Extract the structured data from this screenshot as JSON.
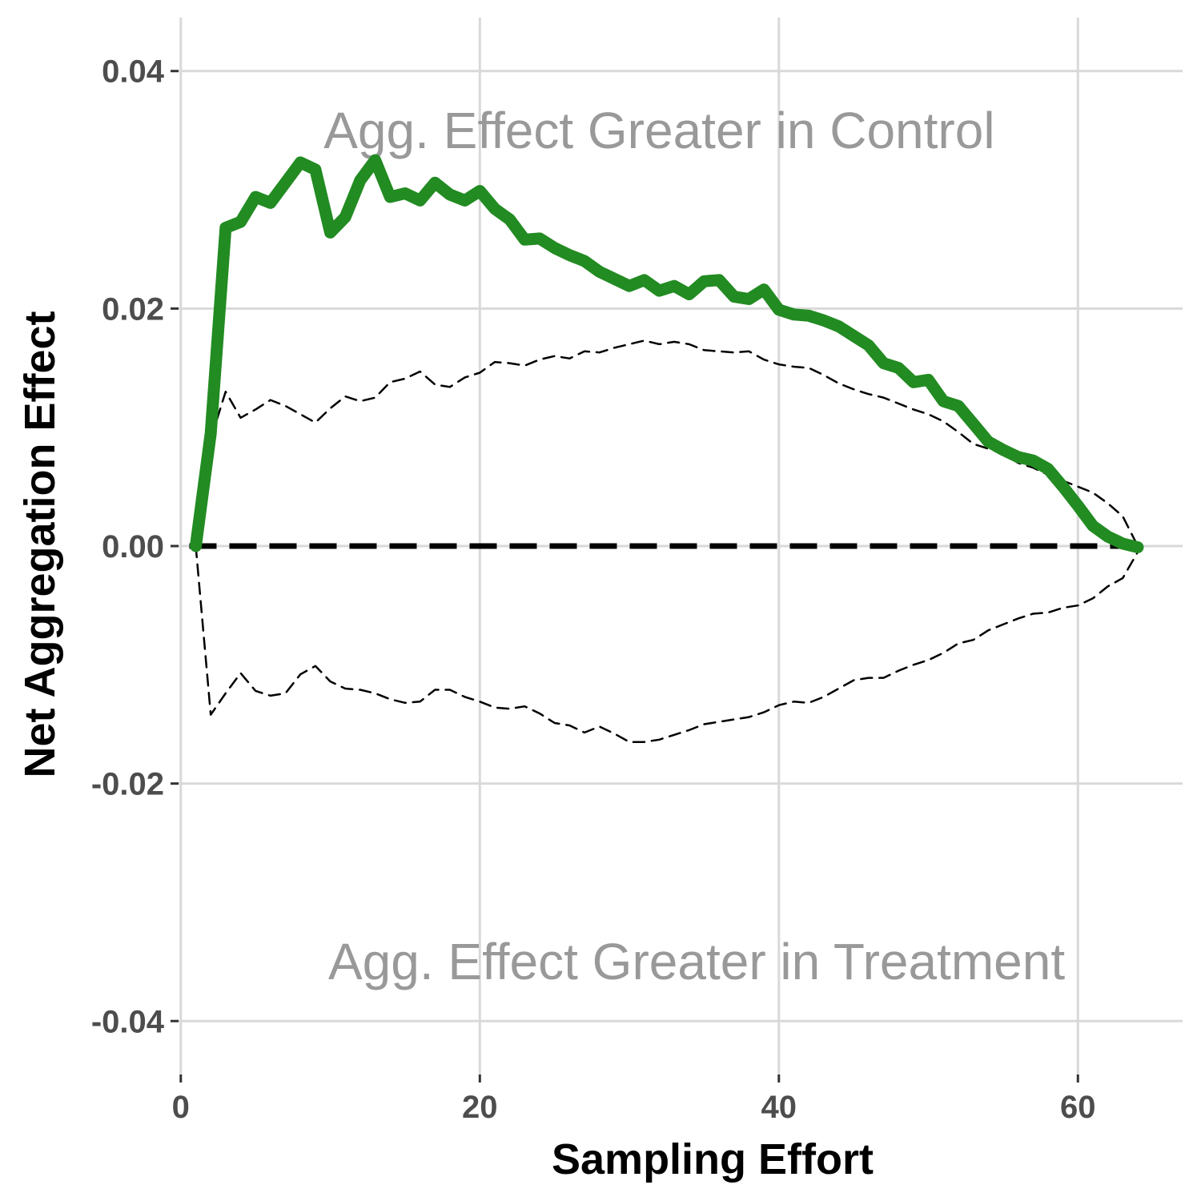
{
  "chart_data": {
    "type": "line",
    "xlabel": "Sampling Effort",
    "ylabel": "Net Aggregation Effect",
    "xlim": [
      -0.15,
      67
    ],
    "ylim": [
      -0.0445,
      0.0445
    ],
    "x_ticks": [
      0,
      20,
      40,
      60
    ],
    "x_tick_labels": [
      "0",
      "20",
      "40",
      "60"
    ],
    "y_ticks": [
      0.04,
      0.02,
      0.0,
      -0.02,
      -0.04
    ],
    "y_tick_labels": [
      "0.04",
      "0.02",
      "0.00",
      "-0.02",
      "-0.04"
    ],
    "grid": true,
    "annotations": [
      {
        "text": "Agg. Effect Greater in Control",
        "x": 32,
        "y": 0.035
      },
      {
        "text": "Agg. Effect Greater in Treatment",
        "x": 34.5,
        "y": -0.035
      }
    ],
    "reference_line": {
      "y": 0.0,
      "style": "dashed",
      "color": "#000000"
    },
    "colors": {
      "observed": "#228B22",
      "envelope": "#000000",
      "grid": "#d9d9d9",
      "annotation": "#999999",
      "tick_text": "#4d4d4d"
    },
    "series": [
      {
        "style": "solid-thick",
        "x": [
          1,
          2,
          3,
          4,
          5,
          6,
          7,
          8,
          9,
          10,
          11,
          12,
          13,
          14,
          15,
          16,
          17,
          18,
          19,
          20,
          21,
          22,
          23,
          24,
          25,
          26,
          27,
          28,
          29,
          30,
          31,
          32,
          33,
          34,
          35,
          36,
          37,
          38,
          39,
          40,
          41,
          42,
          43,
          44,
          45,
          46,
          47,
          48,
          49,
          50,
          51,
          52,
          53,
          54,
          55,
          56,
          57,
          58,
          59,
          60,
          61,
          62,
          63,
          64
        ],
        "y": [
          0.0,
          0.0095,
          0.0268,
          0.0273,
          0.0294,
          0.0289,
          0.0306,
          0.0323,
          0.0317,
          0.0264,
          0.0277,
          0.0308,
          0.0325,
          0.0294,
          0.0297,
          0.0291,
          0.0306,
          0.0296,
          0.0291,
          0.0299,
          0.0284,
          0.0275,
          0.0258,
          0.0259,
          0.0251,
          0.0245,
          0.024,
          0.0231,
          0.0225,
          0.0219,
          0.0224,
          0.0215,
          0.0219,
          0.0212,
          0.0223,
          0.0224,
          0.021,
          0.0208,
          0.0216,
          0.0199,
          0.0195,
          0.0194,
          0.019,
          0.0185,
          0.0177,
          0.0169,
          0.0154,
          0.015,
          0.0138,
          0.014,
          0.0122,
          0.0118,
          0.0103,
          0.0088,
          0.0081,
          0.0075,
          0.0072,
          0.0065,
          0.005,
          0.0034,
          0.0017,
          0.0008,
          0.0002,
          -0.0001
        ]
      },
      {
        "style": "dashed-upper",
        "x": [
          1,
          2,
          3,
          4,
          5,
          6,
          7,
          8,
          9,
          10,
          11,
          12,
          13,
          14,
          15,
          16,
          17,
          18,
          19,
          20,
          21,
          22,
          23,
          24,
          25,
          26,
          27,
          28,
          29,
          30,
          31,
          32,
          33,
          34,
          35,
          36,
          37,
          38,
          39,
          40,
          41,
          42,
          43,
          44,
          45,
          46,
          47,
          48,
          49,
          50,
          51,
          52,
          53,
          54,
          55,
          56,
          57,
          58,
          59,
          60,
          61,
          62,
          63,
          64
        ],
        "y": [
          0.0,
          0.009,
          0.013,
          0.0108,
          0.0115,
          0.0123,
          0.0118,
          0.0111,
          0.0104,
          0.0116,
          0.0126,
          0.0122,
          0.0125,
          0.0138,
          0.0141,
          0.0147,
          0.0136,
          0.0134,
          0.0142,
          0.0146,
          0.0155,
          0.0154,
          0.0152,
          0.0157,
          0.016,
          0.0158,
          0.0164,
          0.0163,
          0.0167,
          0.017,
          0.0173,
          0.017,
          0.0172,
          0.017,
          0.0165,
          0.0164,
          0.0163,
          0.0164,
          0.0157,
          0.0153,
          0.0151,
          0.015,
          0.0144,
          0.0137,
          0.0132,
          0.0128,
          0.0125,
          0.012,
          0.0115,
          0.0111,
          0.0105,
          0.0096,
          0.0086,
          0.0082,
          0.0078,
          0.007,
          0.0066,
          0.006,
          0.0055,
          0.005,
          0.0045,
          0.0036,
          0.0025,
          0.0
        ]
      },
      {
        "style": "dashed-lower",
        "x": [
          1,
          2,
          3,
          4,
          5,
          6,
          7,
          8,
          9,
          10,
          11,
          12,
          13,
          14,
          15,
          16,
          17,
          18,
          19,
          20,
          21,
          22,
          23,
          24,
          25,
          26,
          27,
          28,
          29,
          30,
          31,
          32,
          33,
          34,
          35,
          36,
          37,
          38,
          39,
          40,
          41,
          42,
          43,
          44,
          45,
          46,
          47,
          48,
          49,
          50,
          51,
          52,
          53,
          54,
          55,
          56,
          57,
          58,
          59,
          60,
          61,
          62,
          63,
          64
        ],
        "y": [
          0.0,
          -0.0142,
          -0.0124,
          -0.0107,
          -0.0122,
          -0.0126,
          -0.0124,
          -0.0108,
          -0.0101,
          -0.0114,
          -0.012,
          -0.0121,
          -0.0124,
          -0.0129,
          -0.0132,
          -0.0131,
          -0.0121,
          -0.0121,
          -0.0127,
          -0.0131,
          -0.0136,
          -0.0137,
          -0.0135,
          -0.0141,
          -0.0149,
          -0.0151,
          -0.0157,
          -0.0152,
          -0.0158,
          -0.0165,
          -0.0165,
          -0.0163,
          -0.0159,
          -0.0155,
          -0.015,
          -0.0148,
          -0.0146,
          -0.0144,
          -0.014,
          -0.0134,
          -0.0131,
          -0.0132,
          -0.0127,
          -0.012,
          -0.0113,
          -0.0111,
          -0.0111,
          -0.0105,
          -0.01,
          -0.0096,
          -0.009,
          -0.0082,
          -0.0079,
          -0.0071,
          -0.0066,
          -0.0061,
          -0.0057,
          -0.0056,
          -0.0052,
          -0.005,
          -0.0044,
          -0.0034,
          -0.0027,
          -0.0005
        ]
      }
    ]
  }
}
